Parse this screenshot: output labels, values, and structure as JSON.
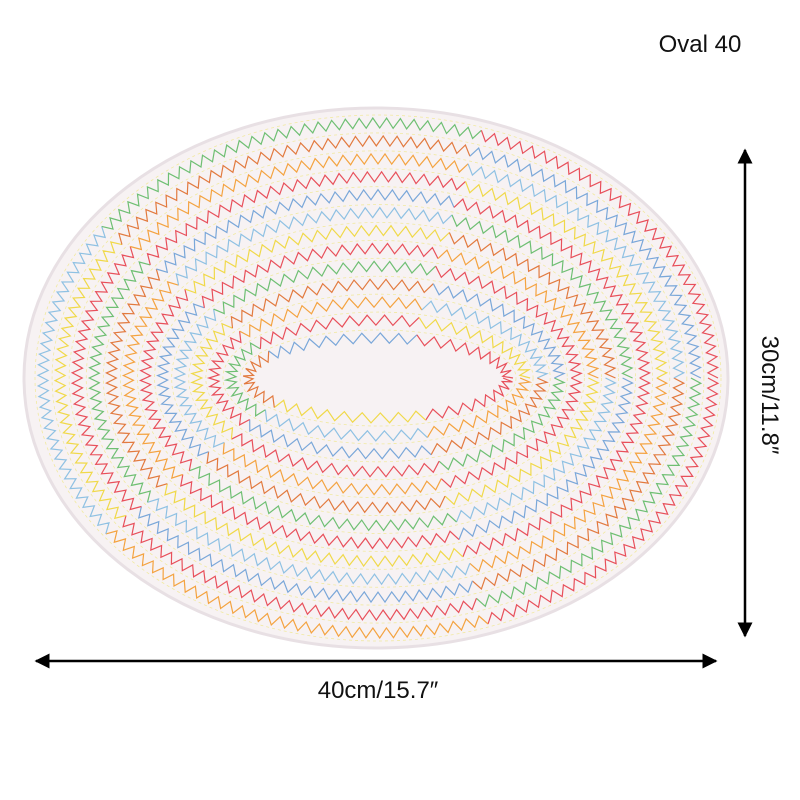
{
  "label": "Oval 40",
  "width_label": "40cm/15.7″",
  "height_label": "30cm/11.8″"
}
